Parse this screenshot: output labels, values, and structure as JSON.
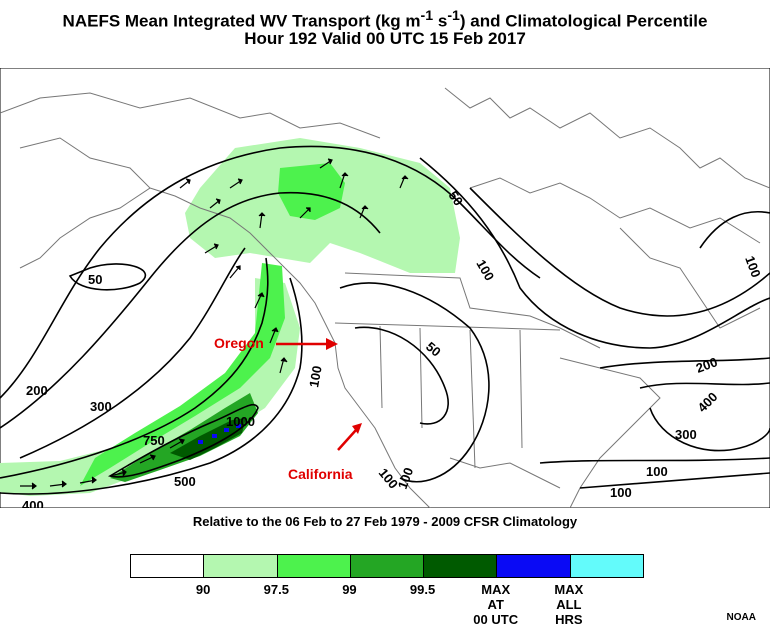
{
  "title": {
    "line1_prefix": "NAEFS Mean Integrated WV Transport (kg m",
    "line1_sup1": "-1",
    "line1_mid": " s",
    "line1_sup2": "-1",
    "line1_suffix": ") and Climatological Percentile",
    "line2": "Hour 192 Valid 00 UTC 15 Feb 2017"
  },
  "subtitle": "Relative to the 06 Feb to 27 Feb 1979 - 2009 CFSR Climatology",
  "annotations": {
    "oregon": "Oregon",
    "california": "California",
    "annotation_color": "#e00000"
  },
  "contour_labels": [
    "50",
    "100",
    "50",
    "50",
    "100",
    "200",
    "300",
    "750",
    "1000",
    "500",
    "400",
    "100",
    "100",
    "100",
    "200",
    "400",
    "300",
    "100",
    "100"
  ],
  "legend": {
    "segments": [
      {
        "color": "#ffffff",
        "label": "90"
      },
      {
        "color": "#b4f7b0",
        "label": "97.5"
      },
      {
        "color": "#4df24d",
        "label": "99"
      },
      {
        "color": "#24a624",
        "label": "99.5"
      },
      {
        "color": "#005a00",
        "label": "MAX\nAT\n00 UTC"
      },
      {
        "color": "#0a0af5",
        "label": "MAX\nALL\nHRS"
      },
      {
        "color": "#63fbfb",
        "label": ""
      }
    ]
  },
  "credit": "NOAA",
  "colors": {
    "p97_5": "#b4f7b0",
    "p99": "#4df24d",
    "p99_5": "#24a624",
    "max00": "#005a00",
    "maxall": "#0a0af5"
  }
}
